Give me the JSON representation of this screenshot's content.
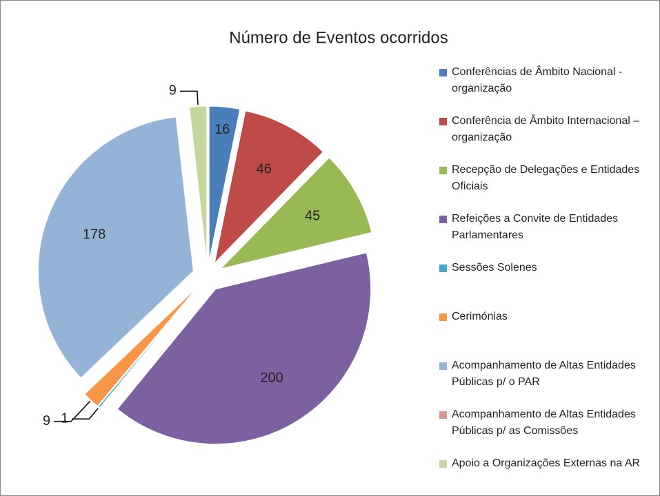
{
  "chart_data": {
    "type": "pie",
    "title": "Número de Eventos ocorridos",
    "categories": [
      "Conferências de Âmbito Nacional - organização",
      "Conferência de Âmbito Internacional – organização",
      "Recepção de Delegações e Entidades  Oficiais",
      "Refeições a Convite de Entidades Parlamentares",
      "Sessões Solenes",
      "Cerimónias",
      "Acompanhamento de Altas Entidades Públicas p/ o PAR",
      "Acompanhamento de Altas Entidades Públicas p/ as Comissões",
      "Apoio a Organizações Externas na AR"
    ],
    "values": [
      16,
      46,
      45,
      200,
      1,
      9,
      178,
      0,
      9
    ],
    "colors": [
      "#4a7ebb",
      "#be4b48",
      "#98b954",
      "#7d60a0",
      "#46aac5",
      "#f79646",
      "#95b3d7",
      "#d99694",
      "#c3d69b"
    ],
    "legend": "right"
  }
}
